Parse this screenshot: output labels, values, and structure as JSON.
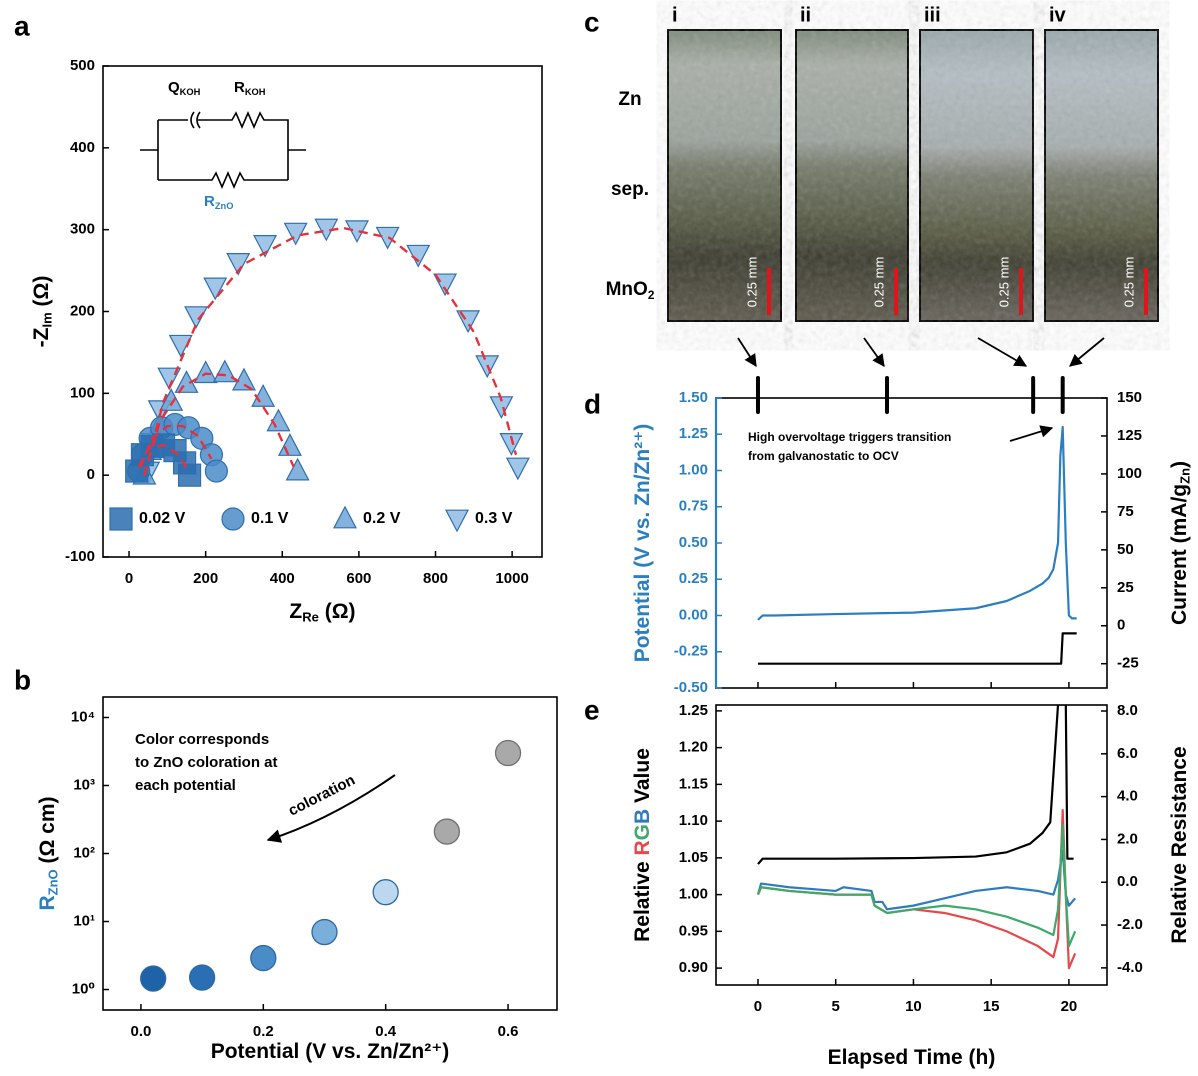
{
  "panel_labels": [
    "a",
    "b",
    "c",
    "d",
    "e"
  ],
  "images": {
    "labels": [
      "i",
      "ii",
      "iii",
      "iv"
    ],
    "rows": [
      [
        {
          "text": "Zn"
        }
      ],
      [
        {
          "text": "sep."
        }
      ],
      [
        {
          "text": "MnO"
        },
        {
          "text": "2",
          "sub": true
        }
      ]
    ],
    "scale_bar": "0.25 mm"
  },
  "chart_data": [
    {
      "type": "scatter",
      "xlabel": [
        {
          "text": "Z"
        },
        {
          "text": "Re",
          "sub": true
        },
        {
          "text": " (Ω)"
        }
      ],
      "ylabel": [
        {
          "text": "-Z"
        },
        {
          "text": "Im",
          "sub": true
        },
        {
          "text": " (Ω)"
        }
      ],
      "xlim": [
        -68,
        1078
      ],
      "ylim": [
        -100,
        500
      ],
      "xticks": [
        0,
        200,
        400,
        600,
        800,
        1000
      ],
      "yticks": [
        -100,
        0,
        100,
        200,
        300,
        400,
        500
      ],
      "legend": "lower center",
      "circuit": {
        "q": [
          {
            "text": "Q"
          },
          {
            "text": "KOH",
            "sub": true
          }
        ],
        "r": [
          {
            "text": "R"
          },
          {
            "text": "KOH",
            "sub": true
          }
        ],
        "r2": [
          {
            "text": "R",
            "color": "#2a7fc0"
          },
          {
            "text": "ZnO",
            "sub": true,
            "color": "#2a7fc0"
          }
        ]
      },
      "series": [
        {
          "name": "0.02 V",
          "marker": "square",
          "color": "#2a6db0",
          "x": [
            20,
            35,
            60,
            90,
            120,
            145,
            158
          ],
          "values": [
            5,
            25,
            35,
            37,
            30,
            15,
            0
          ]
        },
        {
          "name": "0.1 V",
          "marker": "circle",
          "color": "#4a8cc8",
          "x": [
            25,
            35,
            55,
            85,
            120,
            155,
            190,
            215,
            228
          ],
          "values": [
            5,
            25,
            45,
            58,
            62,
            58,
            45,
            25,
            5
          ]
        },
        {
          "name": "0.2 V",
          "marker": "triangle-up",
          "color": "#6ea5d6",
          "x": [
            40,
            55,
            80,
            110,
            150,
            200,
            250,
            300,
            350,
            390,
            420,
            440
          ],
          "values": [
            0,
            30,
            60,
            90,
            112,
            124,
            125,
            115,
            95,
            65,
            35,
            5
          ]
        },
        {
          "name": "0.3 V",
          "marker": "triangle-down",
          "color": "#8fbbe2",
          "x": [
            50,
            62,
            80,
            105,
            135,
            175,
            225,
            285,
            355,
            435,
            515,
            595,
            675,
            755,
            825,
            885,
            935,
            972,
            998,
            1015
          ],
          "values": [
            5,
            40,
            80,
            120,
            160,
            195,
            230,
            260,
            282,
            297,
            302,
            300,
            292,
            270,
            235,
            190,
            135,
            85,
            40,
            10
          ]
        }
      ],
      "fits": [
        {
          "color": "#e8303a",
          "x": [
            25,
            50,
            90,
            130,
            155
          ],
          "values": [
            10,
            32,
            37,
            25,
            5
          ]
        },
        {
          "color": "#e8303a",
          "x": [
            30,
            60,
            100,
            140,
            180,
            215
          ],
          "values": [
            10,
            45,
            60,
            60,
            48,
            20
          ]
        },
        {
          "color": "#e8303a",
          "x": [
            40,
            80,
            140,
            200,
            260,
            320,
            380,
            430
          ],
          "values": [
            0,
            65,
            108,
            124,
            122,
            105,
            62,
            10
          ]
        },
        {
          "color": "#e8303a",
          "x": [
            40,
            90,
            180,
            300,
            440,
            560,
            680,
            800,
            900,
            970,
            1010
          ],
          "values": [
            0,
            90,
            190,
            258,
            293,
            302,
            290,
            245,
            175,
            95,
            25
          ]
        }
      ]
    },
    {
      "type": "scatter",
      "ylog": true,
      "xlabel": [
        {
          "text": "Potential (V vs. Zn/Zn²⁺)"
        }
      ],
      "ylabel": [
        {
          "text": "R",
          "color": "#2a7fc0"
        },
        {
          "text": "ZnO",
          "sub": true,
          "color": "#2a7fc0"
        },
        {
          "text": " (Ω cm)"
        }
      ],
      "xlim": [
        -0.062,
        0.68
      ],
      "ylim": [
        0.5,
        20000
      ],
      "xticks": [
        {
          "value": 0,
          "label": "0.0"
        },
        0.2,
        0.4,
        0.6
      ],
      "yticks": [
        {
          "value": 1,
          "label": "10⁰"
        },
        {
          "value": 10,
          "label": "10¹"
        },
        {
          "value": 100,
          "label": "10²"
        },
        {
          "value": 1000,
          "label": "10³"
        },
        {
          "value": 10000,
          "label": "10⁴"
        }
      ],
      "x": [
        0.02,
        0.1,
        0.2,
        0.3,
        0.4,
        0.5,
        0.6
      ],
      "values": [
        1.45,
        1.5,
        2.9,
        7,
        27,
        210,
        3000
      ],
      "colors": [
        "#1e63a8",
        "#2a6fb3",
        "#4a8cc7",
        "#7aaedb",
        "#bcd7ee",
        "#a9a9a9",
        "#a9a9a9"
      ],
      "annotation": [
        "Color corresponds",
        "to ZnO coloration at",
        "each potential"
      ],
      "arrow_label": "coloration"
    },
    {
      "type": "line",
      "ylabel": [
        {
          "text": "Potential (V vs. Zn/Zn²⁺)"
        }
      ],
      "y2label": [
        {
          "text": "Current (mA/g"
        },
        {
          "text": "Zn",
          "sub": true
        },
        {
          "text": ")"
        }
      ],
      "xlim": [
        -2.7,
        22.45
      ],
      "ylim": [
        -0.5,
        1.5
      ],
      "y2lim": [
        -41,
        150
      ],
      "xticks": [
        0,
        5,
        10,
        15,
        20
      ],
      "xtick_labels": false,
      "yticks": [
        {
          "value": 1.5,
          "label": "1.50"
        },
        1.25,
        {
          "value": 1,
          "label": "1.00"
        },
        0.75,
        {
          "value": 0.5,
          "label": "0.50"
        },
        0.25,
        {
          "value": 0,
          "label": "0.00"
        },
        -0.25,
        {
          "value": -0.5,
          "label": "-0.50"
        }
      ],
      "y2ticks": [
        150,
        125,
        100,
        75,
        50,
        25,
        0,
        -25
      ],
      "ycolor": "#2a7fc0",
      "markers": [
        0,
        8.3,
        17.7,
        19.6
      ],
      "annotation": [
        "High overvoltage triggers transition",
        "from galvanostatic to OCV"
      ],
      "series": [
        {
          "color": "#2a7fc0",
          "x": [
            0,
            0.3,
            1,
            5,
            10,
            14,
            16,
            17.5,
            18.3,
            18.7,
            19,
            19.3,
            19.45,
            19.6,
            19.8,
            20,
            20.2,
            20.5
          ],
          "values": [
            -0.03,
            0,
            0,
            0.01,
            0.02,
            0.05,
            0.1,
            0.17,
            0.22,
            0.26,
            0.32,
            0.5,
            1.1,
            1.3,
            0.5,
            0,
            -0.02,
            -0.02
          ]
        },
        {
          "color": "#000000",
          "axis": "y2",
          "x": [
            0,
            19.5,
            19.6,
            20.5
          ],
          "values": [
            -25,
            -25,
            -5,
            -5
          ]
        }
      ]
    },
    {
      "type": "line",
      "xlabel": [
        {
          "text": "Elapsed Time (h)"
        }
      ],
      "ylabel": [
        {
          "text": "Relative "
        },
        {
          "text": "R",
          "color": "#e8474b"
        },
        {
          "text": "G",
          "color": "#3daa6a"
        },
        {
          "text": "B",
          "color": "#2f7bbf"
        },
        {
          "text": " Value"
        }
      ],
      "y2label": [
        {
          "text": "Relative Resistance"
        }
      ],
      "xlim": [
        -2.7,
        22.45
      ],
      "ylim": [
        0.877,
        1.258
      ],
      "y2lim": [
        -4.8,
        8.28
      ],
      "xticks": [
        0,
        5,
        10,
        15,
        20
      ],
      "yticks": [
        {
          "value": 0.9,
          "label": "0.90"
        },
        0.95,
        {
          "value": 1,
          "label": "1.00"
        },
        1.05,
        {
          "value": 1.1,
          "label": "1.10"
        },
        1.15,
        {
          "value": 1.2,
          "label": "1.20"
        },
        1.25
      ],
      "y2ticks": [
        {
          "value": -4,
          "label": "-4.0"
        },
        {
          "value": -2,
          "label": "-2.0"
        },
        {
          "value": 0,
          "label": "0.0"
        },
        {
          "value": 2,
          "label": "2.0"
        },
        {
          "value": 4,
          "label": "4.0"
        },
        {
          "value": 6,
          "label": "6.0"
        },
        {
          "value": 8,
          "label": "8.0"
        }
      ],
      "series": [
        {
          "color": "#2f7bbf",
          "x": [
            0,
            0.2,
            2,
            5,
            5.5,
            7.3,
            7.5,
            8,
            8.3,
            10,
            12,
            14,
            16,
            18,
            19,
            19.3,
            19.6,
            19.8,
            20,
            20.4
          ],
          "values": [
            1.0,
            1.015,
            1.01,
            1.005,
            1.01,
            1.005,
            0.99,
            0.99,
            0.98,
            0.985,
            0.995,
            1.005,
            1.01,
            1.005,
            1.0,
            1.02,
            1.06,
            1.0,
            0.985,
            0.995
          ]
        },
        {
          "color": "#e8474b",
          "x": [
            0,
            0.2,
            2,
            5,
            7.3,
            7.5,
            8.3,
            10,
            12,
            14,
            16,
            18,
            19,
            19.3,
            19.6,
            19.8,
            20,
            20.4
          ],
          "values": [
            1.0,
            1.01,
            1.005,
            1.0,
            1.0,
            0.985,
            0.975,
            0.98,
            0.975,
            0.965,
            0.95,
            0.93,
            0.915,
            0.94,
            1.115,
            1.0,
            0.9,
            0.92
          ]
        },
        {
          "color": "#3daa6a",
          "x": [
            0,
            0.2,
            2,
            5,
            7.3,
            7.5,
            8.3,
            10,
            12,
            14,
            16,
            18,
            19,
            19.3,
            19.6,
            19.8,
            20,
            20.4
          ],
          "values": [
            1.0,
            1.01,
            1.005,
            1.0,
            1.0,
            0.985,
            0.975,
            0.98,
            0.985,
            0.98,
            0.97,
            0.955,
            0.945,
            0.98,
            1.095,
            1.0,
            0.93,
            0.95
          ]
        },
        {
          "color": "#000000",
          "axis": "y2",
          "x": [
            0,
            0.3,
            5,
            10,
            14,
            16,
            17.5,
            18.3,
            18.8,
            19.3,
            19.8,
            19.9,
            20.3
          ],
          "values": [
            0.85,
            1.1,
            1.1,
            1.13,
            1.2,
            1.4,
            1.8,
            2.3,
            2.8,
            8.3,
            8.3,
            1.1,
            1.1
          ]
        }
      ]
    }
  ]
}
